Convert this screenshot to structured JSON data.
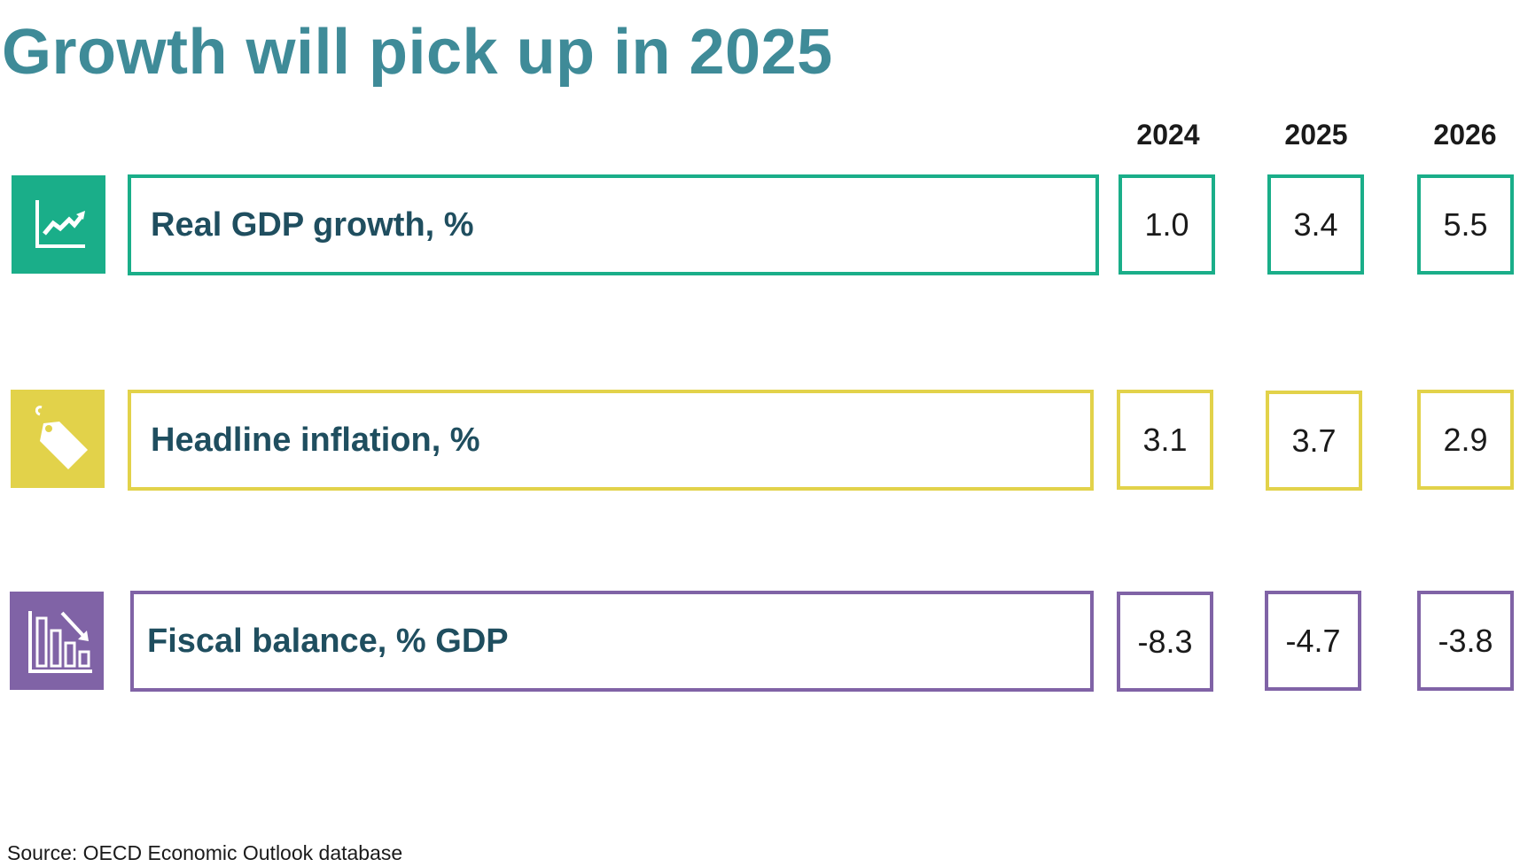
{
  "title": "Growth will pick up in 2025",
  "source": "Source: OECD Economic Outlook database",
  "colors": {
    "title": "#3f8b98",
    "gdp": "#1aae89",
    "inflation": "#e2d24a",
    "fiscal": "#8063a6",
    "label_text": "#1f4e5f"
  },
  "chart_data": {
    "type": "table",
    "title": "Growth will pick up in 2025",
    "columns": [
      "2024",
      "2025",
      "2026"
    ],
    "rows": [
      {
        "label": "Real GDP growth, %",
        "icon": "chart-trend-up-icon",
        "color": "#1aae89",
        "values": [
          "1.0",
          "3.4",
          "5.5"
        ]
      },
      {
        "label": "Headline inflation, %",
        "icon": "price-tag-icon",
        "color": "#e2d24a",
        "values": [
          "3.1",
          "3.7",
          "2.9"
        ]
      },
      {
        "label": "Fiscal balance, % GDP",
        "icon": "bar-chart-decline-icon",
        "color": "#8063a6",
        "values": [
          "-8.3",
          "-4.7",
          "-3.8"
        ]
      }
    ],
    "source": "Source: OECD Economic Outlook database"
  }
}
